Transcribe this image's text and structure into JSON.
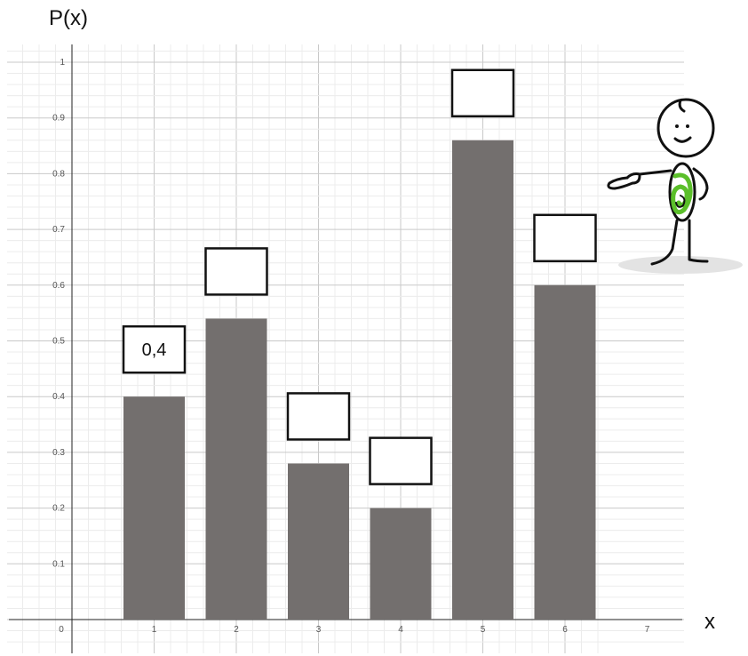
{
  "chart_data": {
    "type": "bar",
    "title": "",
    "xlabel": "x",
    "ylabel": "P(x)",
    "x": [
      1,
      2,
      3,
      4,
      5,
      6
    ],
    "values": [
      0.4,
      0.54,
      0.28,
      0.2,
      0.86,
      0.6
    ],
    "value_labels": [
      "0,4",
      "",
      "",
      "",
      "",
      ""
    ],
    "xlim": [
      0,
      7.5
    ],
    "ylim": [
      0,
      1.05
    ],
    "x_ticks": [
      "0",
      "1",
      "2",
      "3",
      "4",
      "5",
      "6",
      "7"
    ],
    "y_ticks": [
      "0.1",
      "0.2",
      "0.3",
      "0.4",
      "0.5",
      "0.6",
      "0.7",
      "0.8",
      "0.9",
      "1"
    ],
    "grid": true,
    "bar_color": "#736f6e"
  },
  "decoration": {
    "icon": "pointing-stick-figure-icon",
    "accent_color": "#5bbf2a"
  }
}
